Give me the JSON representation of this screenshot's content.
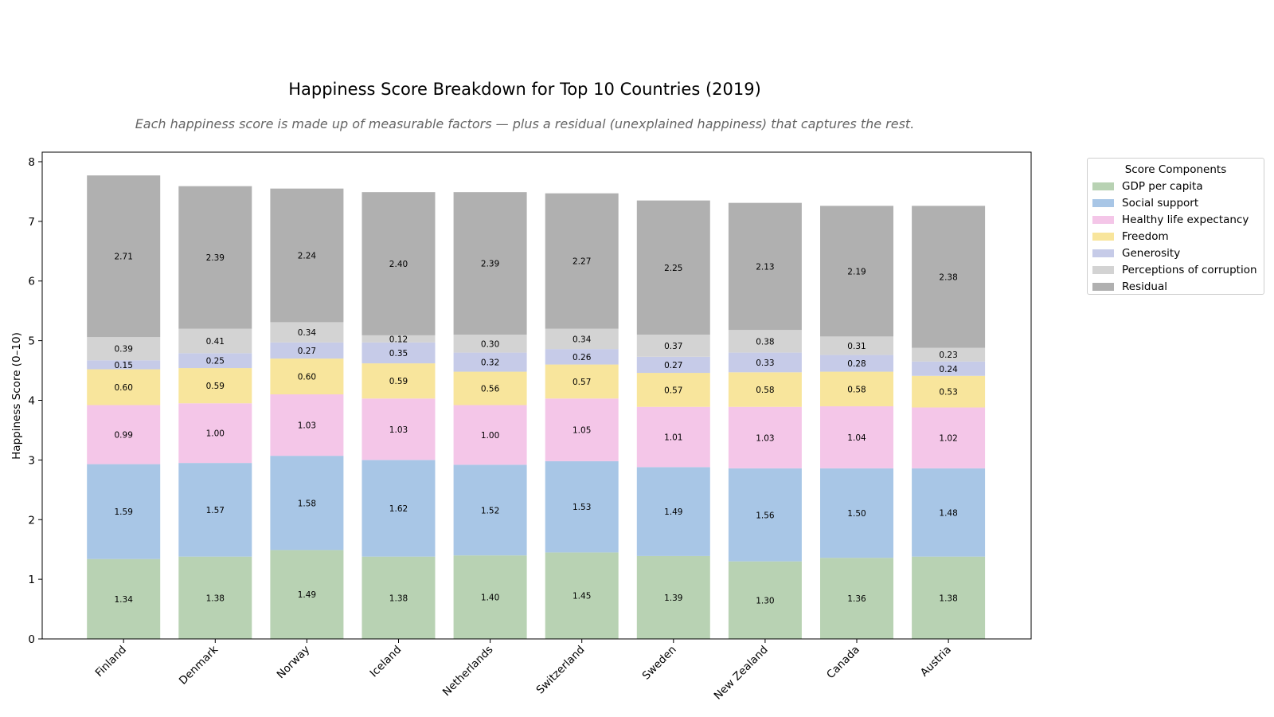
{
  "chart_data": {
    "type": "bar",
    "stacked": true,
    "title": "Happiness Score Breakdown for Top 10 Countries (2019)",
    "subtitle": "Each happiness score is made up of measurable factors — plus a residual (unexplained happiness) that captures the rest.",
    "xlabel": "",
    "ylabel": "Happiness Score (0–10)",
    "ylim": [
      0,
      8.16
    ],
    "yticks": [
      0,
      1,
      2,
      3,
      4,
      5,
      6,
      7,
      8
    ],
    "grid": false,
    "legend": {
      "title": "Score Components",
      "placement": "outside-right-top"
    },
    "categories": [
      "Finland",
      "Denmark",
      "Norway",
      "Iceland",
      "Netherlands",
      "Switzerland",
      "Sweden",
      "New Zealand",
      "Canada",
      "Austria"
    ],
    "series": [
      {
        "name": "GDP per capita",
        "color": "#b8d2b3",
        "values": [
          1.34,
          1.38,
          1.49,
          1.38,
          1.4,
          1.45,
          1.39,
          1.3,
          1.36,
          1.38
        ]
      },
      {
        "name": "Social support",
        "color": "#a8c6e6",
        "values": [
          1.59,
          1.57,
          1.58,
          1.62,
          1.52,
          1.53,
          1.49,
          1.56,
          1.5,
          1.48
        ]
      },
      {
        "name": "Healthy life expectancy",
        "color": "#f4c6e8",
        "values": [
          0.99,
          1.0,
          1.03,
          1.03,
          1.0,
          1.05,
          1.01,
          1.03,
          1.04,
          1.02
        ]
      },
      {
        "name": "Freedom",
        "color": "#f8e59c",
        "values": [
          0.6,
          0.59,
          0.6,
          0.59,
          0.56,
          0.57,
          0.57,
          0.58,
          0.58,
          0.53
        ]
      },
      {
        "name": "Generosity",
        "color": "#c6cbe8",
        "values": [
          0.15,
          0.25,
          0.27,
          0.35,
          0.32,
          0.26,
          0.27,
          0.33,
          0.28,
          0.24
        ]
      },
      {
        "name": "Perceptions of corruption",
        "color": "#d3d3d3",
        "values": [
          0.39,
          0.41,
          0.34,
          0.12,
          0.3,
          0.34,
          0.37,
          0.38,
          0.31,
          0.23
        ]
      },
      {
        "name": "Residual",
        "color": "#b0b0b0",
        "values": [
          2.71,
          2.39,
          2.24,
          2.4,
          2.39,
          2.27,
          2.25,
          2.13,
          2.19,
          2.38
        ]
      }
    ]
  }
}
